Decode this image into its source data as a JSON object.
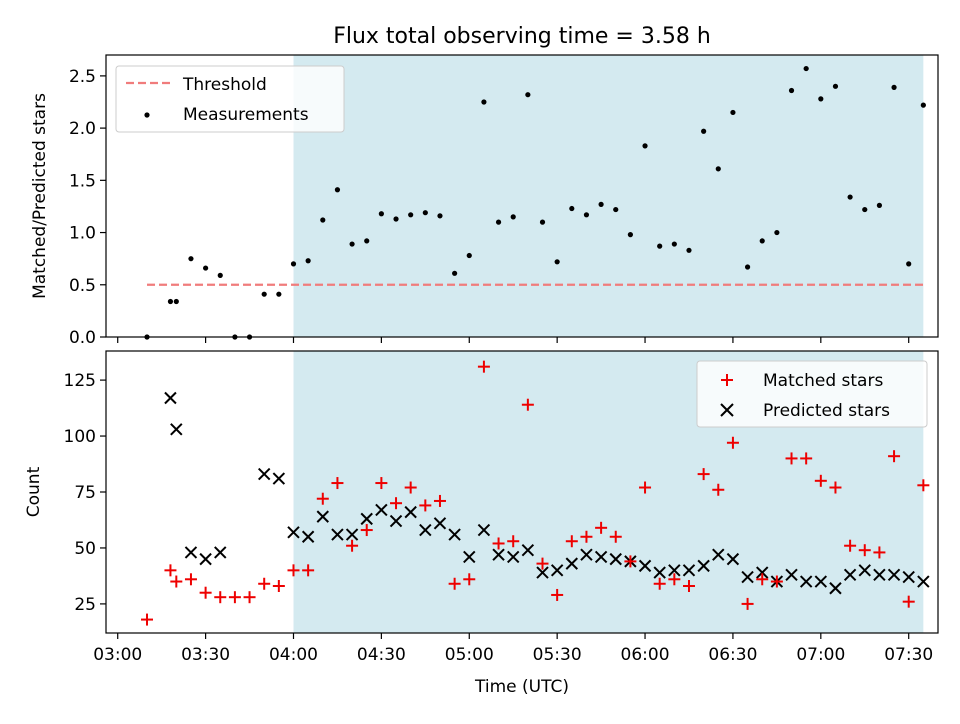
{
  "colors": {
    "observing_span": "#d4eaf0",
    "threshold": "#f07c7c",
    "measurement": "#000000",
    "matched": "#ee0000",
    "predicted": "#000000"
  },
  "chart_data": [
    {
      "type": "scatter",
      "title": "Flux total observing time = 3.58 h",
      "ylabel": "Matched/Predicted stars",
      "xlabel": "",
      "xlim": [
        "02:56",
        "07:40"
      ],
      "ylim": [
        0,
        2.7
      ],
      "yticks": [
        0.0,
        0.5,
        1.0,
        1.5,
        2.0,
        2.5
      ],
      "ytick_labels": [
        "0.0",
        "0.5",
        "1.0",
        "1.5",
        "2.0",
        "2.5"
      ],
      "xticks": [
        "03:00",
        "03:30",
        "04:00",
        "04:30",
        "05:00",
        "05:30",
        "06:00",
        "06:30",
        "07:00",
        "07:30"
      ],
      "shaded_span": [
        "04:00",
        "07:35"
      ],
      "legend": {
        "position": "top-left",
        "entries": [
          "Threshold",
          "Measurements"
        ]
      },
      "threshold": {
        "name": "Threshold",
        "x": [
          "03:10",
          "07:35"
        ],
        "y": 0.5
      },
      "series": [
        {
          "name": "Measurements",
          "x": [
            "03:10",
            "03:18",
            "03:20",
            "03:25",
            "03:30",
            "03:35",
            "03:40",
            "03:45",
            "03:50",
            "03:55",
            "04:00",
            "04:05",
            "04:10",
            "04:15",
            "04:20",
            "04:25",
            "04:30",
            "04:35",
            "04:40",
            "04:45",
            "04:50",
            "04:55",
            "05:00",
            "05:05",
            "05:10",
            "05:15",
            "05:20",
            "05:25",
            "05:30",
            "05:35",
            "05:40",
            "05:45",
            "05:50",
            "05:55",
            "06:00",
            "06:05",
            "06:10",
            "06:15",
            "06:20",
            "06:25",
            "06:30",
            "06:35",
            "06:40",
            "06:45",
            "06:50",
            "06:55",
            "07:00",
            "07:05",
            "07:10",
            "07:15",
            "07:20",
            "07:25",
            "07:30",
            "07:35"
          ],
          "y": [
            0.0,
            0.34,
            0.34,
            0.75,
            0.66,
            0.59,
            0.0,
            0.0,
            0.41,
            0.41,
            0.7,
            0.73,
            1.12,
            1.41,
            0.89,
            0.92,
            1.18,
            1.13,
            1.17,
            1.19,
            1.16,
            0.61,
            0.78,
            2.25,
            1.1,
            1.15,
            2.32,
            1.1,
            0.72,
            1.23,
            1.17,
            1.27,
            1.22,
            0.98,
            1.83,
            0.87,
            0.89,
            0.83,
            1.97,
            1.61,
            2.15,
            0.67,
            0.92,
            1.0,
            2.36,
            2.57,
            2.28,
            2.4,
            1.34,
            1.22,
            1.26,
            2.39,
            0.7,
            2.22
          ]
        }
      ]
    },
    {
      "type": "scatter",
      "title": "",
      "ylabel": "Count",
      "xlabel": "Time (UTC)",
      "xlim": [
        "02:56",
        "07:40"
      ],
      "ylim": [
        12,
        138
      ],
      "yticks": [
        25,
        50,
        75,
        100,
        125
      ],
      "ytick_labels": [
        "25",
        "50",
        "75",
        "100",
        "125"
      ],
      "xticks": [
        "03:00",
        "03:30",
        "04:00",
        "04:30",
        "05:00",
        "05:30",
        "06:00",
        "06:30",
        "07:00",
        "07:30"
      ],
      "xtick_labels": [
        "03:00",
        "03:30",
        "04:00",
        "04:30",
        "05:00",
        "05:30",
        "06:00",
        "06:30",
        "07:00",
        "07:30"
      ],
      "shaded_span": [
        "04:00",
        "07:35"
      ],
      "legend": {
        "position": "top-right",
        "entries": [
          "Matched stars",
          "Predicted stars"
        ]
      },
      "series": [
        {
          "name": "Matched stars",
          "marker": "plus",
          "x": [
            "03:10",
            "03:18",
            "03:20",
            "03:25",
            "03:30",
            "03:35",
            "03:40",
            "03:45",
            "03:50",
            "03:55",
            "04:00",
            "04:05",
            "04:10",
            "04:15",
            "04:20",
            "04:25",
            "04:30",
            "04:35",
            "04:40",
            "04:45",
            "04:50",
            "04:55",
            "05:00",
            "05:05",
            "05:10",
            "05:15",
            "05:20",
            "05:25",
            "05:30",
            "05:35",
            "05:40",
            "05:45",
            "05:50",
            "05:55",
            "06:00",
            "06:05",
            "06:10",
            "06:15",
            "06:20",
            "06:25",
            "06:30",
            "06:35",
            "06:40",
            "06:45",
            "06:50",
            "06:55",
            "07:00",
            "07:05",
            "07:10",
            "07:15",
            "07:20",
            "07:25",
            "07:30",
            "07:35"
          ],
          "y": [
            18,
            40,
            35,
            36,
            30,
            28,
            28,
            28,
            34,
            33,
            40,
            40,
            72,
            79,
            51,
            58,
            79,
            70,
            77,
            69,
            71,
            34,
            36,
            131,
            52,
            53,
            114,
            43,
            29,
            53,
            55,
            59,
            55,
            44,
            77,
            34,
            36,
            33,
            83,
            76,
            97,
            25,
            36,
            35,
            90,
            90,
            80,
            77,
            51,
            49,
            48,
            91,
            26,
            78
          ]
        },
        {
          "name": "Predicted stars",
          "marker": "x",
          "x": [
            "03:18",
            "03:20",
            "03:25",
            "03:30",
            "03:35",
            "03:50",
            "03:55",
            "04:00",
            "04:05",
            "04:10",
            "04:15",
            "04:20",
            "04:25",
            "04:30",
            "04:35",
            "04:40",
            "04:45",
            "04:50",
            "04:55",
            "05:00",
            "05:05",
            "05:10",
            "05:15",
            "05:20",
            "05:25",
            "05:30",
            "05:35",
            "05:40",
            "05:45",
            "05:50",
            "05:55",
            "06:00",
            "06:05",
            "06:10",
            "06:15",
            "06:20",
            "06:25",
            "06:30",
            "06:35",
            "06:40",
            "06:45",
            "06:50",
            "06:55",
            "07:00",
            "07:05",
            "07:10",
            "07:15",
            "07:20",
            "07:25",
            "07:30",
            "07:35"
          ],
          "y": [
            117,
            103,
            48,
            45,
            48,
            83,
            81,
            57,
            55,
            64,
            56,
            56,
            63,
            67,
            62,
            66,
            58,
            61,
            56,
            46,
            58,
            47,
            46,
            49,
            39,
            40,
            43,
            47,
            46,
            45,
            44,
            42,
            39,
            40,
            40,
            42,
            47,
            45,
            37,
            39,
            35,
            38,
            35,
            35,
            32,
            38,
            40,
            38,
            38,
            37,
            35
          ]
        }
      ]
    }
  ]
}
